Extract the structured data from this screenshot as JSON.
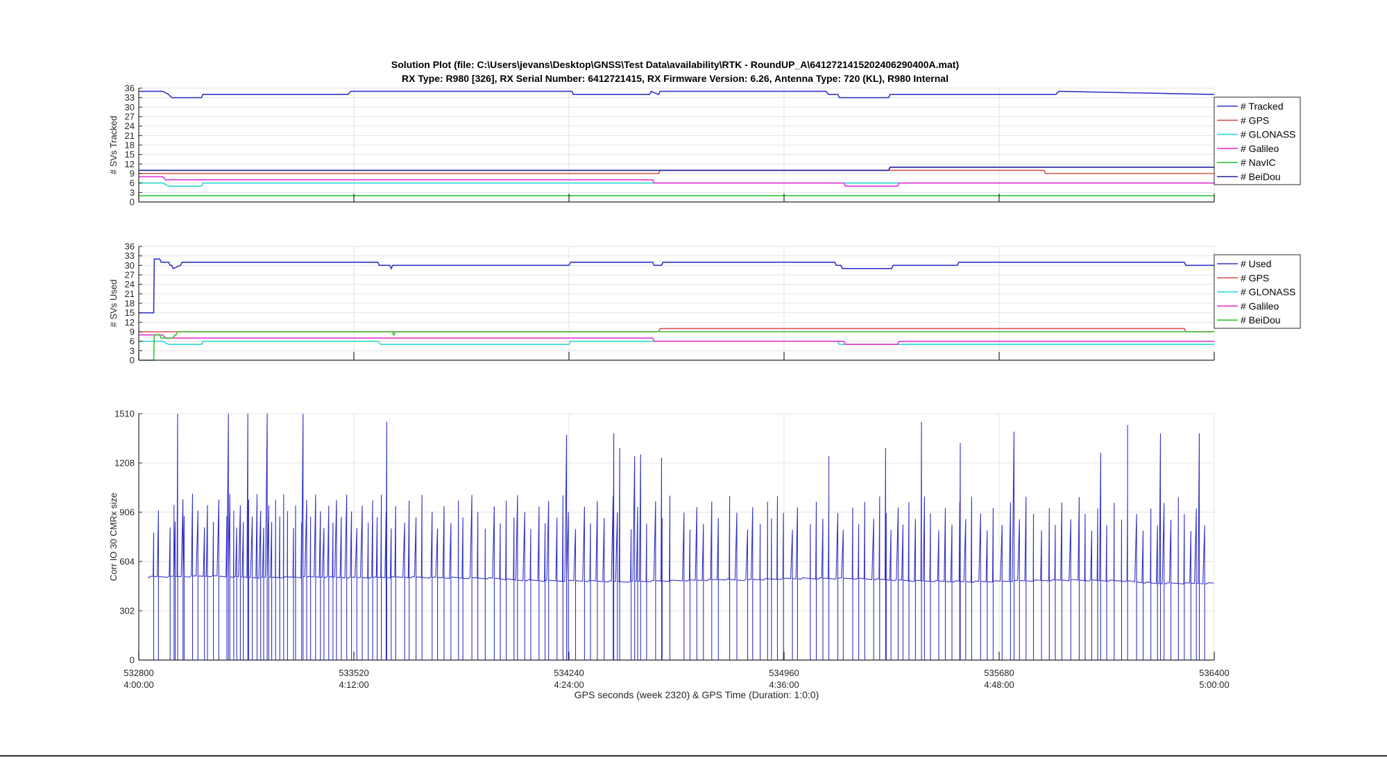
{
  "figure": {
    "title_line1": "Solution Plot (file: C:\\Users\\jevans\\Desktop\\GNSS\\Test Data\\availability\\RTK - RoundUP_A\\6412721415202406290400A.mat)",
    "title_line2": "RX Type: R980 [326], RX Serial Number: 6412721415, RX Firmware Version: 6.26, Antenna Type: 720 (KL), R980 Internal",
    "xlabel": "GPS seconds (week 2320) & GPS Time (Duration: 1:0:0)"
  },
  "colors": {
    "blue": "#3232c8",
    "red": "#d9534f",
    "cyan": "#2fd6d6",
    "magenta": "#e233d2",
    "green": "#33c433",
    "navy": "#1f1f9c",
    "grid": "#e3e3e3",
    "axis": "#262626"
  },
  "x_ticks": [
    {
      "value": 532800,
      "label": "532800",
      "time": "4:00:00"
    },
    {
      "value": 533520,
      "label": "533520",
      "time": "4:12:00"
    },
    {
      "value": 534240,
      "label": "534240",
      "time": "4:24:00"
    },
    {
      "value": 534960,
      "label": "534960",
      "time": "4:36:00"
    },
    {
      "value": 535680,
      "label": "535680",
      "time": "4:48:00"
    },
    {
      "value": 536400,
      "label": "536400",
      "time": "5:00:00"
    }
  ],
  "chart_data": [
    {
      "type": "line",
      "ylabel": "# SVs Tracked",
      "xlim": [
        532800,
        536400
      ],
      "ylim": [
        0,
        36
      ],
      "yticks": [
        0,
        3,
        6,
        9,
        12,
        15,
        18,
        21,
        24,
        27,
        30,
        33,
        36
      ],
      "grid": true,
      "legend_position": "right",
      "series": [
        {
          "name": "# Tracked",
          "color": "blue",
          "x": [
            532800,
            532880,
            532900,
            532910,
            533010,
            533015,
            533500,
            533510,
            534250,
            534255,
            534510,
            534515,
            534540,
            534545,
            535100,
            535110,
            535140,
            535145,
            535310,
            535315,
            535870,
            535880,
            536400
          ],
          "y": [
            35,
            35,
            34,
            33,
            33,
            34,
            34,
            35,
            35,
            34,
            34,
            35,
            34,
            35,
            35,
            34,
            34,
            33,
            33,
            34,
            34,
            35,
            34
          ]
        },
        {
          "name": "# GPS",
          "color": "red",
          "x": [
            532800,
            534540,
            534545,
            535310,
            535315,
            535830,
            535835,
            536400
          ],
          "y": [
            9,
            9,
            10,
            10,
            10,
            10,
            9,
            9
          ]
        },
        {
          "name": "# GLONASS",
          "color": "cyan",
          "x": [
            532800,
            532880,
            532900,
            533010,
            533015,
            533500,
            533510,
            535150,
            535155,
            536400
          ],
          "y": [
            6,
            6,
            5,
            5,
            6,
            6,
            6,
            6,
            6,
            6
          ]
        },
        {
          "name": "# Galileo",
          "color": "magenta",
          "x": [
            532800,
            532880,
            532890,
            534520,
            534525,
            535160,
            535165,
            535340,
            535345,
            536400
          ],
          "y": [
            8,
            8,
            7,
            7,
            6,
            6,
            5,
            5,
            6,
            6
          ]
        },
        {
          "name": "# NavIC",
          "color": "green",
          "x": [
            532800,
            536400
          ],
          "y": [
            2,
            2
          ]
        },
        {
          "name": "# BeiDou",
          "color": "navy",
          "x": [
            532800,
            535310,
            535315,
            536400
          ],
          "y": [
            10,
            10,
            11,
            11
          ]
        }
      ]
    },
    {
      "type": "line",
      "ylabel": "# SVs Used",
      "xlim": [
        532800,
        536400
      ],
      "ylim": [
        0,
        36
      ],
      "yticks": [
        0,
        3,
        6,
        9,
        12,
        15,
        18,
        21,
        24,
        27,
        30,
        33,
        36
      ],
      "grid": true,
      "legend_position": "right",
      "series": [
        {
          "name": "# Used",
          "color": "blue",
          "x": [
            532800,
            532850,
            532852,
            532870,
            532875,
            532900,
            532905,
            532910,
            532915,
            532940,
            532945,
            533600,
            533605,
            533640,
            533645,
            533650,
            533655,
            534240,
            534245,
            534520,
            534525,
            534550,
            534555,
            535130,
            535135,
            535150,
            535155,
            535320,
            535325,
            535540,
            535545,
            536300,
            536305,
            536400
          ],
          "y": [
            15,
            15,
            32,
            32,
            31,
            31,
            30,
            30,
            29,
            30,
            31,
            31,
            30,
            30,
            29,
            30,
            30,
            30,
            31,
            31,
            30,
            30,
            31,
            31,
            30,
            30,
            29,
            29,
            30,
            30,
            31,
            31,
            30,
            30
          ]
        },
        {
          "name": "# GPS",
          "color": "red",
          "x": [
            532800,
            532850,
            532855,
            534540,
            534545,
            535310,
            535315,
            536300,
            536305,
            536400
          ],
          "y": [
            9,
            9,
            9,
            9,
            10,
            10,
            10,
            10,
            9,
            9
          ]
        },
        {
          "name": "# GLONASS",
          "color": "cyan",
          "x": [
            532800,
            532880,
            532900,
            533010,
            533015,
            533600,
            533610,
            534240,
            534245,
            535140,
            535145,
            536400
          ],
          "y": [
            6,
            6,
            5,
            5,
            6,
            6,
            5,
            5,
            6,
            6,
            5,
            5
          ]
        },
        {
          "name": "# Galileo",
          "color": "magenta",
          "x": [
            532800,
            532880,
            532890,
            534520,
            534525,
            535160,
            535165,
            535340,
            535345,
            536400
          ],
          "y": [
            8,
            8,
            7,
            7,
            6,
            6,
            5,
            5,
            6,
            6
          ]
        },
        {
          "name": "# BeiDou",
          "color": "green",
          "x": [
            532800,
            532850,
            532852,
            532870,
            532875,
            532915,
            532920,
            532925,
            532930,
            533650,
            533652,
            533655,
            533658,
            536400
          ],
          "y": [
            0,
            0,
            8,
            8,
            7,
            7,
            8,
            8,
            9,
            9,
            8,
            8,
            9,
            9
          ]
        }
      ]
    },
    {
      "type": "line",
      "ylabel": "Corr IO 30 CMRx size",
      "xlim": [
        532800,
        536400
      ],
      "ylim": [
        0,
        1510
      ],
      "yticks": [
        0,
        302,
        604,
        906,
        1208,
        1510
      ],
      "grid": true,
      "series": [
        {
          "name": "",
          "color": "blue",
          "baseline": [
            [
              532830,
              510
            ],
            [
              532940,
              512
            ],
            [
              533040,
              515
            ],
            [
              533200,
              505
            ],
            [
              533400,
              510
            ],
            [
              533520,
              505
            ],
            [
              533700,
              508
            ],
            [
              533800,
              505
            ],
            [
              534000,
              500
            ],
            [
              534060,
              490
            ],
            [
              534200,
              485
            ],
            [
              534300,
              485
            ],
            [
              534420,
              480
            ],
            [
              534700,
              490
            ],
            [
              534760,
              495
            ],
            [
              534800,
              490
            ],
            [
              535000,
              500
            ],
            [
              535200,
              500
            ],
            [
              535400,
              485
            ],
            [
              535600,
              480
            ],
            [
              535900,
              490
            ],
            [
              536100,
              485
            ],
            [
              536200,
              470
            ],
            [
              536400,
              470
            ]
          ],
          "spike_times": [
            532850,
            532866,
            532905,
            532918,
            532922,
            532948,
            532952,
            532980,
            532998,
            533020,
            533030,
            533050,
            533068,
            533095,
            533105,
            533118,
            533128,
            533140,
            533150,
            533168,
            533180,
            533196,
            533208,
            533218,
            533235,
            533245,
            533258,
            533272,
            533285,
            533298,
            533318,
            533325,
            533345,
            533362,
            533375,
            533392,
            533408,
            533420,
            533436,
            533450,
            533462,
            533478,
            533496,
            533512,
            533530,
            533548,
            533568,
            533583,
            533598,
            533612,
            533628,
            533645,
            533660,
            533690,
            533705,
            533728,
            533748,
            533782,
            533800,
            533822,
            533845,
            533870,
            533885,
            533915,
            533935,
            533960,
            533990,
            534010,
            534030,
            534056,
            534068,
            534092,
            534112,
            534140,
            534160,
            534172,
            534200,
            534220,
            534238,
            534262,
            534292,
            534312,
            534335,
            534358,
            534388,
            534402,
            534448,
            534470,
            534500,
            534530,
            534552,
            534578,
            534625,
            534645,
            534668,
            534690,
            534718,
            534740,
            534778,
            534802,
            534838,
            534855,
            534880,
            534905,
            534918,
            534938,
            534958,
            534988,
            535005,
            535048,
            535068,
            535090,
            535110,
            535140,
            535158,
            535190,
            535210,
            535230,
            535260,
            535280,
            535302,
            535318,
            535342,
            535358,
            535378,
            535400,
            535430,
            535450,
            535478,
            535500,
            535522,
            535548,
            535568,
            535588,
            535618,
            535640,
            535660,
            535690,
            535718,
            535748,
            535770,
            535795,
            535822,
            535848,
            535868,
            535890,
            535920,
            535948,
            535968,
            535990,
            536010,
            536040,
            536065,
            536090,
            536110,
            536140,
            536162,
            536188,
            536210,
            536232,
            536255,
            536280,
            536300,
            536322,
            536340,
            536368
          ],
          "peaks": [
            {
              "x": 532930,
              "y": 1510
            },
            {
              "x": 533100,
              "y": 1510
            },
            {
              "x": 533165,
              "y": 1510
            },
            {
              "x": 533230,
              "y": 1510
            },
            {
              "x": 533350,
              "y": 1510
            },
            {
              "x": 533630,
              "y": 1460
            },
            {
              "x": 534232,
              "y": 1380
            },
            {
              "x": 534390,
              "y": 1390
            },
            {
              "x": 534410,
              "y": 1300
            },
            {
              "x": 534460,
              "y": 1250
            },
            {
              "x": 534480,
              "y": 1260
            },
            {
              "x": 534550,
              "y": 1240
            },
            {
              "x": 535110,
              "y": 1250
            },
            {
              "x": 535300,
              "y": 1300
            },
            {
              "x": 535420,
              "y": 1460
            },
            {
              "x": 535550,
              "y": 1330
            },
            {
              "x": 535730,
              "y": 1400
            },
            {
              "x": 536020,
              "y": 1270
            },
            {
              "x": 536110,
              "y": 1440
            },
            {
              "x": 536220,
              "y": 1390
            },
            {
              "x": 536350,
              "y": 1390
            }
          ]
        }
      ]
    }
  ]
}
